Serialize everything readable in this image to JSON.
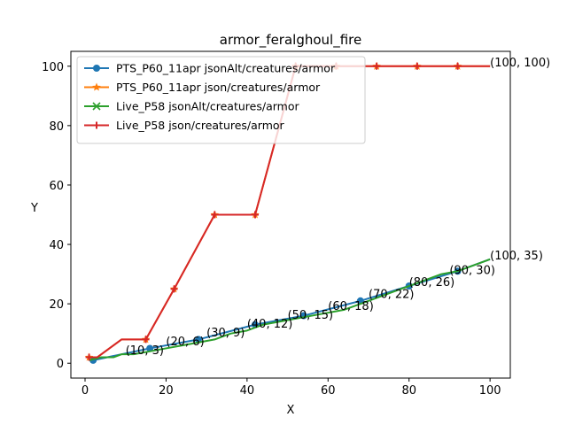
{
  "chart_data": {
    "type": "line",
    "title": "armor_feralghoul_fire",
    "xlabel": "X",
    "ylabel": "Y",
    "xlim": [
      -3.5,
      105
    ],
    "ylim": [
      -5,
      105
    ],
    "xticks": [
      0,
      20,
      40,
      60,
      80,
      100
    ],
    "yticks": [
      0,
      20,
      40,
      60,
      80,
      100
    ],
    "grid": false,
    "legend_position": "upper-left",
    "series": [
      {
        "name": "PTS_P60_11apr jsonAlt/creatures/armor",
        "color": "#1f77b4",
        "marker": "circle",
        "x": [
          2,
          16,
          28,
          42,
          54,
          68,
          80,
          92,
          100
        ],
        "y": [
          1,
          5,
          8,
          13,
          16,
          21,
          26,
          31,
          35
        ],
        "marker_x": [
          2,
          16,
          28,
          42,
          54,
          68,
          80,
          92
        ]
      },
      {
        "name": "PTS_P60_11apr json/creatures/armor",
        "color": "#ff7f0e",
        "marker": "star",
        "x": [
          1,
          3,
          9,
          15,
          22,
          32,
          42,
          52,
          62,
          72,
          82,
          92,
          100
        ],
        "y": [
          2,
          2,
          8,
          8,
          25,
          50,
          50,
          100,
          100,
          100,
          100,
          100,
          100
        ],
        "marker_x": [
          1,
          15,
          22,
          32,
          42,
          52,
          62,
          72,
          82,
          92
        ]
      },
      {
        "name": "Live_P58 jsonAlt/creatures/armor",
        "color": "#2ca02c",
        "marker": "x",
        "x": [
          1,
          4,
          7,
          9,
          12,
          16,
          20,
          24,
          28,
          32,
          36,
          40,
          44,
          48,
          52,
          56,
          60,
          64,
          68,
          72,
          76,
          80,
          84,
          88,
          92,
          96,
          100
        ],
        "y": [
          1,
          2,
          2,
          3,
          3,
          4,
          5,
          6,
          7,
          8,
          10,
          11,
          13,
          14,
          15,
          16,
          17,
          18,
          20,
          22,
          24,
          26,
          28,
          30,
          31,
          33,
          35
        ],
        "marker_x": []
      },
      {
        "name": "Live_P58 json/creatures/armor",
        "color": "#d62728",
        "marker": "plus",
        "x": [
          1,
          3,
          9,
          15,
          22,
          32,
          42,
          52,
          62,
          72,
          82,
          92,
          100
        ],
        "y": [
          2,
          2,
          8,
          8,
          25,
          50,
          50,
          100,
          100,
          100,
          100,
          100,
          100
        ],
        "marker_x": [
          1,
          15,
          22,
          32,
          42,
          52,
          62,
          72,
          82,
          92
        ]
      }
    ],
    "annotations": [
      {
        "text": "(10, 3)",
        "x": 10,
        "y": 3
      },
      {
        "text": "(20, 6)",
        "x": 20,
        "y": 6
      },
      {
        "text": "(30, 9)",
        "x": 30,
        "y": 9
      },
      {
        "text": "(40, 12)",
        "x": 40,
        "y": 12
      },
      {
        "text": "(50, 15)",
        "x": 50,
        "y": 15
      },
      {
        "text": "(60, 18)",
        "x": 60,
        "y": 18
      },
      {
        "text": "(70, 22)",
        "x": 70,
        "y": 22
      },
      {
        "text": "(80, 26)",
        "x": 80,
        "y": 26
      },
      {
        "text": "(90, 30)",
        "x": 90,
        "y": 30
      },
      {
        "text": "(100, 35)",
        "x": 100,
        "y": 35
      },
      {
        "text": "(100, 100)",
        "x": 100,
        "y": 100
      }
    ]
  }
}
